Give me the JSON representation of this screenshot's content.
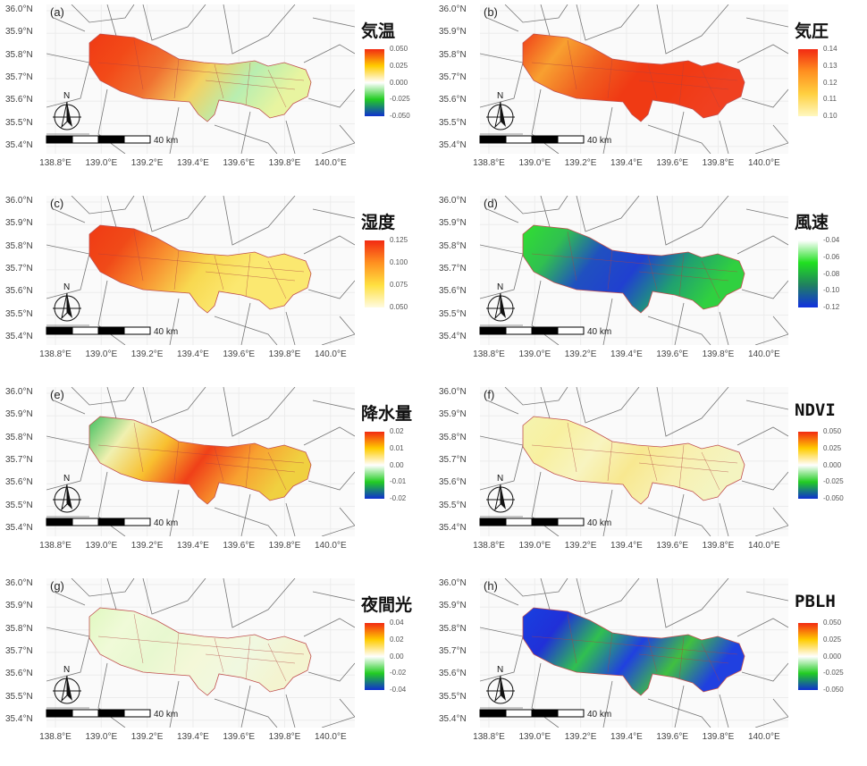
{
  "y_ticks": [
    "36.0°N",
    "35.9°N",
    "35.8°N",
    "35.7°N",
    "35.6°N",
    "35.5°N",
    "35.4°N"
  ],
  "x_ticks": [
    "138.8°E",
    "139.0°E",
    "139.2°E",
    "139.4°E",
    "139.6°E",
    "139.8°E",
    "140.0°E"
  ],
  "north_label": "N",
  "scale_label": "40 km",
  "panels": [
    {
      "label": "(a)",
      "legend_title": "気温",
      "ticks": [
        "0.050",
        "0.025",
        "0.000",
        "-0.025",
        "-0.050"
      ],
      "legend_colors": [
        "#f22a12",
        "#ffcc00",
        "#ffffff",
        "#22cc22",
        "#1030d0"
      ],
      "map_colors": [
        "#f03a14",
        "#f24a18",
        "#f07030",
        "#f5d060",
        "#b8eeb0",
        "#e8f4a0"
      ]
    },
    {
      "label": "(b)",
      "legend_title": "気圧",
      "ticks": [
        "0.14",
        "0.13",
        "0.12",
        "0.11",
        "0.10"
      ],
      "legend_colors": [
        "#f22a12",
        "#ff9020",
        "#ffd040",
        "#fff8c0"
      ],
      "map_colors": [
        "#f04018",
        "#f8a030",
        "#f06020",
        "#f03a14",
        "#f03a14",
        "#f04020"
      ]
    },
    {
      "label": "(c)",
      "legend_title": "湿度",
      "ticks": [
        "0.125",
        "0.100",
        "0.075",
        "0.050"
      ],
      "legend_colors": [
        "#f22a12",
        "#ff9020",
        "#ffe040",
        "#fffbe0"
      ],
      "map_colors": [
        "#f03a14",
        "#f04a18",
        "#f89030",
        "#f8d850",
        "#fbe870",
        "#fbe870"
      ]
    },
    {
      "label": "(d)",
      "legend_title": "風速",
      "ticks": [
        "-0.04",
        "-0.06",
        "-0.08",
        "-0.10",
        "-0.12"
      ],
      "legend_colors": [
        "#ffffff",
        "#20e020",
        "#208060",
        "#1030e0"
      ],
      "map_colors": [
        "#30e030",
        "#30c050",
        "#2050c0",
        "#2040d0",
        "#20a070",
        "#30d040"
      ]
    },
    {
      "label": "(e)",
      "legend_title": "降水量",
      "ticks": [
        "0.02",
        "0.01",
        "0.00",
        "-0.01",
        "-0.02"
      ],
      "legend_colors": [
        "#f22a12",
        "#ffcc00",
        "#ffffff",
        "#22cc22",
        "#1030d0"
      ],
      "map_colors": [
        "#40c060",
        "#f0f0b0",
        "#f8c030",
        "#f04018",
        "#f8a030",
        "#f0d040"
      ]
    },
    {
      "label": "(f)",
      "legend_title": "NDVI",
      "ticks": [
        "0.050",
        "0.025",
        "0.000",
        "-0.025",
        "-0.050"
      ],
      "legend_colors": [
        "#f22a12",
        "#ffcc00",
        "#ffffff",
        "#22cc22",
        "#1030d0"
      ],
      "map_colors": [
        "#f4f4b0",
        "#f8f0a0",
        "#f8f4c0",
        "#f8e890",
        "#f8f0b0",
        "#f4f4c0"
      ]
    },
    {
      "label": "(g)",
      "legend_title": "夜間光",
      "ticks": [
        "0.04",
        "0.02",
        "0.00",
        "-0.02",
        "-0.04"
      ],
      "legend_colors": [
        "#f22a12",
        "#ffcc00",
        "#ffffff",
        "#22cc22",
        "#1030d0"
      ],
      "map_colors": [
        "#e0f8c0",
        "#f0fad8",
        "#e8f8d0",
        "#f4f8d8",
        "#f0f8e0",
        "#f4f4d0"
      ]
    },
    {
      "label": "(h)",
      "legend_title": "PBLH",
      "ticks": [
        "0.050",
        "0.025",
        "0.000",
        "-0.025",
        "-0.050"
      ],
      "legend_colors": [
        "#f22a12",
        "#ffcc00",
        "#ffffff",
        "#22cc22",
        "#1030d0"
      ],
      "map_colors": [
        "#1840e0",
        "#2030d8",
        "#30c050",
        "#2040e0",
        "#40c040",
        "#2040e0"
      ]
    }
  ]
}
